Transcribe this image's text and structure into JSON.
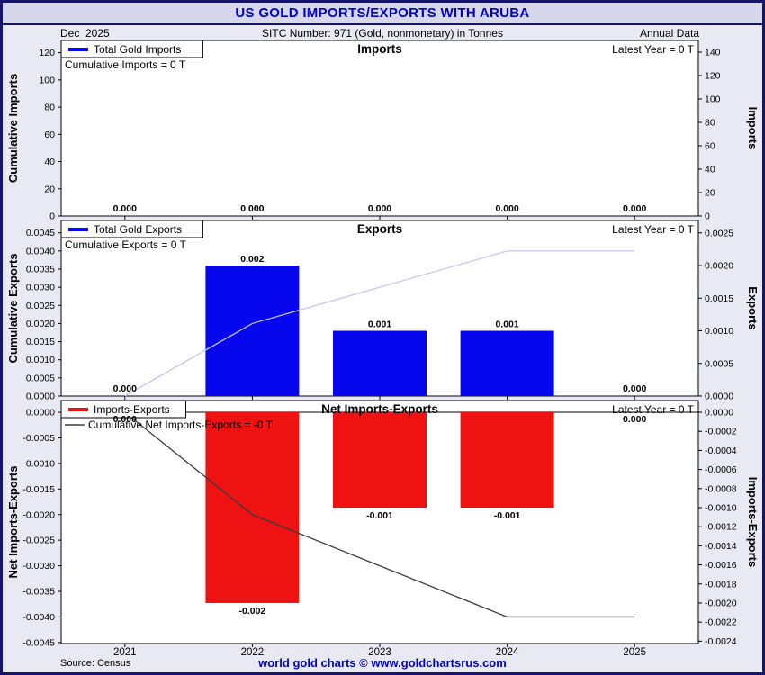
{
  "header": {
    "title": "US GOLD IMPORTS/EXPORTS WITH ARUBA",
    "date_label": "Dec  2025",
    "sitc_label": "SITC Number: 971 (Gold, nonmonetary) in Tonnes",
    "period_label": "Annual Data"
  },
  "footer": {
    "source": "Source: Census",
    "credit": "world gold charts © www.goldchartsrus.com"
  },
  "colors": {
    "frame_border": "#14146a",
    "background": "#e9e9f3",
    "header_bg": "#d7d7ec",
    "title_text": "#0000cc",
    "credit_text": "#0000bb",
    "bar_blue": "#0707ee",
    "bar_red": "#ee1212",
    "cumulative_light": "#c6c6ee",
    "cumulative_dark": "#3c3c3c"
  },
  "chart_data": {
    "type": "bar",
    "categories": [
      2021,
      2022,
      2023,
      2024,
      2025
    ],
    "panels": [
      {
        "title": "Imports",
        "legend_bar": "Total Gold Imports",
        "legend_cumulative": "Cumulative Imports = 0 T",
        "latest_label": "Latest Year = 0 T",
        "left_axis": {
          "label": "Cumulative Imports",
          "min": 0,
          "max": 129,
          "decimals": 0,
          "ticks": [
            0,
            20,
            40,
            60,
            80,
            100,
            120
          ]
        },
        "right_axis": {
          "label": "Imports",
          "min": 0,
          "max": 150,
          "decimals": 0,
          "ticks": [
            0,
            20,
            40,
            60,
            80,
            100,
            120,
            140
          ]
        },
        "bar_color": "#0707ee",
        "bar_values": [
          0,
          0,
          0,
          0,
          0
        ],
        "bar_labels": [
          "0.000",
          "0.000",
          "0.000",
          "0.000",
          "0.000"
        ],
        "cumulative_color": "#c6c6ee",
        "cumulative_values": [
          0,
          0,
          0,
          0,
          0
        ],
        "legend_swatch2": false
      },
      {
        "title": "Exports",
        "legend_bar": "Total Gold Exports",
        "legend_cumulative": "Cumulative Exports = 0 T",
        "latest_label": "Latest Year = 0 T",
        "left_axis": {
          "label": "Cumulative Exports",
          "min": 0,
          "max": 0.00484,
          "decimals": 4,
          "ticks": [
            0,
            0.0005,
            0.001,
            0.0015,
            0.002,
            0.0025,
            0.003,
            0.0035,
            0.004,
            0.0045
          ]
        },
        "right_axis": {
          "label": "Exports",
          "min": 0,
          "max": 0.00269,
          "decimals": 4,
          "ticks": [
            0,
            0.0005,
            0.001,
            0.0015,
            0.002,
            0.0025
          ]
        },
        "bar_color": "#0707ee",
        "bar_values": [
          0,
          0.002,
          0.001,
          0.001,
          0
        ],
        "bar_labels": [
          "0.000",
          "0.002",
          "0.001",
          "0.001",
          "0.000"
        ],
        "cumulative_color": "#c6c6ee",
        "cumulative_values": [
          0,
          0.002,
          0.003,
          0.004,
          0.004
        ],
        "legend_swatch2": false
      },
      {
        "title": "Net Imports-Exports",
        "legend_bar": "Imports-Exports",
        "legend_cumulative": "Cumulative Net Imports-Exports = -0 T",
        "latest_label": "Latest Year = 0 T",
        "left_axis": {
          "label": "Net Imports-Exports",
          "min": -0.00452,
          "max": 0.00023,
          "decimals": 4,
          "ticks": [
            0,
            -0.0005,
            -0.001,
            -0.0015,
            -0.002,
            -0.0025,
            -0.003,
            -0.0035,
            -0.004,
            -0.0045
          ]
        },
        "right_axis": {
          "label": "Imports-Exports",
          "min": -0.002425,
          "max": 0.000123,
          "decimals": 4,
          "ticks": [
            0,
            -0.0002,
            -0.0004,
            -0.0006,
            -0.0008,
            -0.001,
            -0.0012,
            -0.0014,
            -0.0016,
            -0.0018,
            -0.002,
            -0.0022,
            -0.0024
          ]
        },
        "bar_color": "#ee1212",
        "bar_values": [
          0,
          -0.002,
          -0.001,
          -0.001,
          0
        ],
        "bar_labels": [
          "0.000",
          "-0.002",
          "-0.001",
          "-0.001",
          "0.000"
        ],
        "cumulative_color": "#3c3c3c",
        "cumulative_values": [
          0,
          -0.002,
          -0.003,
          -0.004,
          -0.004
        ],
        "legend_swatch2": true
      }
    ]
  }
}
